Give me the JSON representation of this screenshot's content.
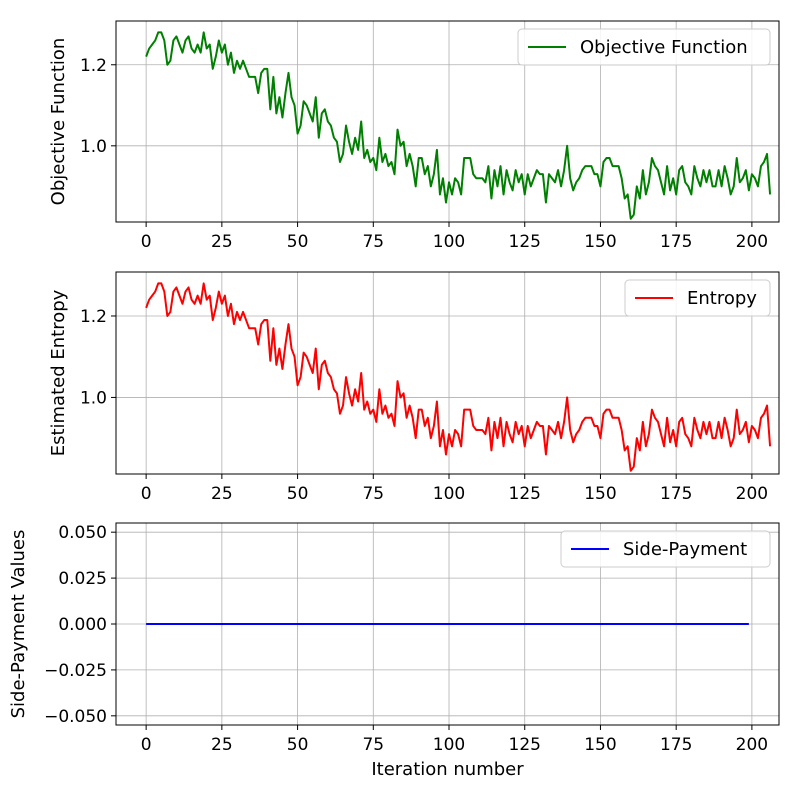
{
  "chart_data": [
    {
      "type": "line",
      "ylabel": "Objective Function",
      "xlabel": "",
      "xlim": [
        -9.95,
        208.95
      ],
      "ylim": [
        0.812,
        1.308
      ],
      "xticks": [
        0,
        25,
        50,
        75,
        100,
        125,
        150,
        175,
        200
      ],
      "yticks": [
        1.0,
        1.2
      ],
      "grid": true,
      "legend_position": "top-right",
      "series": [
        {
          "name": "Objective Function",
          "color": "#008000",
          "x_start": 0,
          "x_step": 1,
          "values": [
            1.22,
            1.24,
            1.25,
            1.26,
            1.28,
            1.28,
            1.26,
            1.2,
            1.21,
            1.26,
            1.27,
            1.25,
            1.23,
            1.26,
            1.27,
            1.24,
            1.23,
            1.25,
            1.23,
            1.28,
            1.24,
            1.25,
            1.19,
            1.22,
            1.26,
            1.23,
            1.25,
            1.2,
            1.23,
            1.18,
            1.21,
            1.19,
            1.21,
            1.19,
            1.17,
            1.17,
            1.17,
            1.13,
            1.18,
            1.19,
            1.19,
            1.09,
            1.17,
            1.08,
            1.12,
            1.07,
            1.13,
            1.18,
            1.12,
            1.1,
            1.03,
            1.05,
            1.11,
            1.1,
            1.08,
            1.06,
            1.12,
            1.02,
            1.08,
            1.09,
            1.06,
            1.05,
            1.02,
            1.01,
            0.96,
            0.98,
            1.05,
            1.01,
            0.98,
            1.02,
            0.99,
            1.06,
            0.97,
            0.99,
            0.96,
            0.97,
            0.94,
            1.02,
            0.96,
            0.98,
            0.95,
            0.96,
            0.93,
            1.04,
            1.0,
            1.01,
            0.95,
            0.98,
            0.95,
            0.9,
            0.97,
            0.97,
            0.93,
            0.95,
            0.9,
            0.93,
            0.99,
            0.88,
            0.92,
            0.86,
            0.91,
            0.88,
            0.92,
            0.91,
            0.88,
            0.97,
            0.97,
            0.97,
            0.93,
            0.92,
            0.92,
            0.92,
            0.91,
            0.95,
            0.87,
            0.94,
            0.9,
            0.95,
            0.88,
            0.94,
            0.91,
            0.89,
            0.94,
            0.91,
            0.93,
            0.88,
            0.93,
            0.9,
            0.92,
            0.94,
            0.93,
            0.93,
            0.86,
            0.93,
            0.92,
            0.91,
            0.94,
            0.9,
            0.94,
            1.0,
            0.92,
            0.89,
            0.91,
            0.92,
            0.94,
            0.95,
            0.95,
            0.95,
            0.93,
            0.93,
            0.9,
            0.96,
            0.97,
            0.97,
            0.95,
            0.95,
            0.95,
            0.92,
            0.87,
            0.88,
            0.82,
            0.83,
            0.9,
            0.87,
            0.94,
            0.88,
            0.91,
            0.97,
            0.95,
            0.94,
            0.91,
            0.88,
            0.95,
            0.89,
            0.92,
            0.88,
            0.94,
            0.95,
            0.91,
            0.9,
            0.88,
            0.95,
            0.92,
            0.9,
            0.94,
            0.91,
            0.94,
            0.9,
            0.9,
            0.94,
            0.9,
            0.95,
            0.92,
            0.88,
            0.9,
            0.97,
            0.91,
            0.92,
            0.94,
            0.89,
            0.93,
            0.92,
            0.9,
            0.95,
            0.96,
            0.98,
            0.88
          ]
        }
      ]
    },
    {
      "type": "line",
      "ylabel": "Estimated Entropy",
      "xlabel": "",
      "xlim": [
        -9.95,
        208.95
      ],
      "ylim": [
        0.812,
        1.308
      ],
      "xticks": [
        0,
        25,
        50,
        75,
        100,
        125,
        150,
        175,
        200
      ],
      "yticks": [
        1.0,
        1.2
      ],
      "grid": true,
      "legend_position": "top-right",
      "series": [
        {
          "name": "Entropy",
          "color": "#ff0000",
          "x_start": 0,
          "x_step": 1,
          "values": [
            1.22,
            1.24,
            1.25,
            1.26,
            1.28,
            1.28,
            1.26,
            1.2,
            1.21,
            1.26,
            1.27,
            1.25,
            1.23,
            1.26,
            1.27,
            1.24,
            1.23,
            1.25,
            1.23,
            1.28,
            1.24,
            1.25,
            1.19,
            1.22,
            1.26,
            1.23,
            1.25,
            1.2,
            1.23,
            1.18,
            1.21,
            1.19,
            1.21,
            1.19,
            1.17,
            1.17,
            1.17,
            1.13,
            1.18,
            1.19,
            1.19,
            1.09,
            1.17,
            1.08,
            1.12,
            1.07,
            1.13,
            1.18,
            1.12,
            1.1,
            1.03,
            1.05,
            1.11,
            1.1,
            1.08,
            1.06,
            1.12,
            1.02,
            1.08,
            1.09,
            1.06,
            1.05,
            1.02,
            1.01,
            0.96,
            0.98,
            1.05,
            1.01,
            0.98,
            1.02,
            0.99,
            1.06,
            0.97,
            0.99,
            0.96,
            0.97,
            0.94,
            1.02,
            0.96,
            0.98,
            0.95,
            0.96,
            0.93,
            1.04,
            1.0,
            1.01,
            0.95,
            0.98,
            0.95,
            0.9,
            0.97,
            0.97,
            0.93,
            0.95,
            0.9,
            0.93,
            0.99,
            0.88,
            0.92,
            0.86,
            0.91,
            0.88,
            0.92,
            0.91,
            0.88,
            0.97,
            0.97,
            0.97,
            0.93,
            0.92,
            0.92,
            0.92,
            0.91,
            0.95,
            0.87,
            0.94,
            0.9,
            0.95,
            0.88,
            0.94,
            0.91,
            0.89,
            0.94,
            0.91,
            0.93,
            0.88,
            0.93,
            0.9,
            0.92,
            0.94,
            0.93,
            0.93,
            0.86,
            0.93,
            0.92,
            0.91,
            0.94,
            0.9,
            0.94,
            1.0,
            0.92,
            0.89,
            0.91,
            0.92,
            0.94,
            0.95,
            0.95,
            0.95,
            0.93,
            0.93,
            0.9,
            0.96,
            0.97,
            0.97,
            0.95,
            0.95,
            0.95,
            0.92,
            0.87,
            0.88,
            0.82,
            0.83,
            0.9,
            0.87,
            0.94,
            0.88,
            0.91,
            0.97,
            0.95,
            0.94,
            0.91,
            0.88,
            0.95,
            0.89,
            0.92,
            0.88,
            0.94,
            0.95,
            0.91,
            0.9,
            0.88,
            0.95,
            0.92,
            0.9,
            0.94,
            0.91,
            0.94,
            0.9,
            0.9,
            0.94,
            0.9,
            0.95,
            0.92,
            0.88,
            0.9,
            0.97,
            0.91,
            0.92,
            0.94,
            0.89,
            0.93,
            0.92,
            0.9,
            0.95,
            0.96,
            0.98,
            0.88
          ]
        }
      ]
    },
    {
      "type": "line",
      "ylabel": "Side-Payment Values",
      "xlabel": "Iteration number",
      "xlim": [
        -9.95,
        208.95
      ],
      "ylim": [
        -0.055,
        0.055
      ],
      "xticks": [
        0,
        25,
        50,
        75,
        100,
        125,
        150,
        175,
        200
      ],
      "yticks": [
        -0.05,
        -0.025,
        0.0,
        0.025,
        0.05
      ],
      "grid": true,
      "legend_position": "top-right",
      "series": [
        {
          "name": "Side-Payment",
          "color": "#0000ff",
          "x": [
            0,
            199
          ],
          "values": [
            0,
            0
          ]
        }
      ]
    }
  ]
}
